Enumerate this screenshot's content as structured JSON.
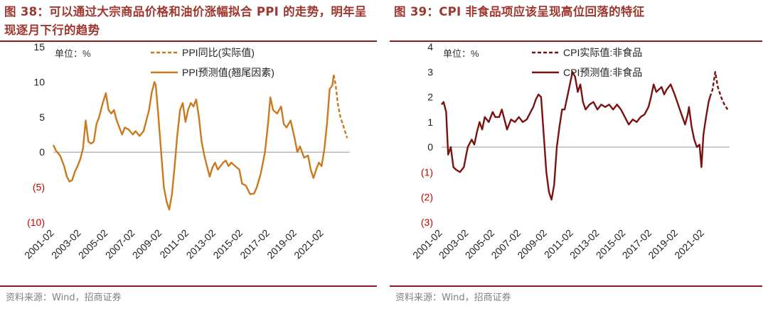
{
  "charts": [
    {
      "title": "图 38：可以通过大宗商品价格和油价涨幅拟合 PPI 的走势，明年呈现逐月下行的趋势",
      "source": "资料来源：Wind，招商证券",
      "unit_label": "单位：%",
      "color": "#c97a1e",
      "negative_tick_color": "#cc0000"
    },
    {
      "title": "图 39：CPI 非食品项应该呈现高位回落的特征",
      "source": "资料来源：Wind，招商证券",
      "unit_label": "单位：%",
      "color": "#7a1212",
      "negative_tick_color": "#cc0000"
    }
  ],
  "chart_data": [
    {
      "type": "line",
      "ylim": [
        -10,
        15
      ],
      "yticks": [
        15,
        10,
        5,
        0,
        -5,
        -10
      ],
      "ytick_labels": [
        "15",
        "10",
        "5",
        "0",
        "(5)",
        "(10)"
      ],
      "xlim": [
        2001.0,
        2023.0
      ],
      "xtick_labels": [
        "2001-02",
        "2003-02",
        "2005-02",
        "2007-02",
        "2009-02",
        "2011-02",
        "2013-02",
        "2015-02",
        "2017-02",
        "2019-02",
        "2021-02"
      ],
      "legend_position": "top",
      "series": [
        {
          "name": "PPI同比(实际值)",
          "style": "dashed",
          "points": [
            [
              2021.8,
              11.0
            ],
            [
              2021.95,
              9.5
            ],
            [
              2022.1,
              7.0
            ],
            [
              2022.3,
              5.0
            ],
            [
              2022.55,
              3.5
            ],
            [
              2022.8,
              2.0
            ]
          ]
        },
        {
          "name": "PPI预测值(翘尾因素)",
          "style": "solid",
          "points": [
            [
              2001.0,
              1.0
            ],
            [
              2001.2,
              0.2
            ],
            [
              2001.5,
              -0.5
            ],
            [
              2001.8,
              -2.0
            ],
            [
              2002.0,
              -3.5
            ],
            [
              2002.2,
              -4.2
            ],
            [
              2002.4,
              -4.0
            ],
            [
              2002.6,
              -2.8
            ],
            [
              2002.8,
              -2.0
            ],
            [
              2003.0,
              -1.0
            ],
            [
              2003.2,
              0.5
            ],
            [
              2003.4,
              4.5
            ],
            [
              2003.6,
              1.5
            ],
            [
              2003.8,
              1.2
            ],
            [
              2004.0,
              1.5
            ],
            [
              2004.2,
              4.0
            ],
            [
              2004.4,
              5.0
            ],
            [
              2004.7,
              7.2
            ],
            [
              2004.9,
              8.4
            ],
            [
              2005.1,
              6.0
            ],
            [
              2005.3,
              5.5
            ],
            [
              2005.5,
              6.0
            ],
            [
              2005.7,
              4.5
            ],
            [
              2005.9,
              3.5
            ],
            [
              2006.1,
              2.5
            ],
            [
              2006.3,
              3.5
            ],
            [
              2006.6,
              3.2
            ],
            [
              2006.9,
              2.5
            ],
            [
              2007.1,
              3.0
            ],
            [
              2007.4,
              2.3
            ],
            [
              2007.7,
              3.0
            ],
            [
              2007.9,
              4.5
            ],
            [
              2008.1,
              6.0
            ],
            [
              2008.3,
              8.5
            ],
            [
              2008.5,
              10.0
            ],
            [
              2008.6,
              9.5
            ],
            [
              2008.8,
              5.0
            ],
            [
              2009.0,
              0.0
            ],
            [
              2009.2,
              -5.0
            ],
            [
              2009.4,
              -7.0
            ],
            [
              2009.6,
              -8.2
            ],
            [
              2009.8,
              -6.0
            ],
            [
              2010.0,
              -2.0
            ],
            [
              2010.2,
              2.5
            ],
            [
              2010.4,
              6.0
            ],
            [
              2010.6,
              7.0
            ],
            [
              2010.8,
              4.3
            ],
            [
              2011.0,
              6.0
            ],
            [
              2011.2,
              7.0
            ],
            [
              2011.4,
              6.5
            ],
            [
              2011.6,
              7.5
            ],
            [
              2011.8,
              5.0
            ],
            [
              2012.0,
              1.5
            ],
            [
              2012.2,
              -0.5
            ],
            [
              2012.4,
              -2.0
            ],
            [
              2012.6,
              -3.5
            ],
            [
              2012.8,
              -2.2
            ],
            [
              2013.0,
              -1.5
            ],
            [
              2013.2,
              -2.5
            ],
            [
              2013.4,
              -2.0
            ],
            [
              2013.6,
              -1.5
            ],
            [
              2013.8,
              -1.2
            ],
            [
              2014.0,
              -2.0
            ],
            [
              2014.2,
              -1.5
            ],
            [
              2014.5,
              -2.0
            ],
            [
              2014.8,
              -2.5
            ],
            [
              2015.0,
              -4.5
            ],
            [
              2015.3,
              -4.8
            ],
            [
              2015.6,
              -6.0
            ],
            [
              2015.9,
              -5.9
            ],
            [
              2016.1,
              -5.0
            ],
            [
              2016.4,
              -3.0
            ],
            [
              2016.7,
              0.0
            ],
            [
              2016.9,
              3.5
            ],
            [
              2017.1,
              7.8
            ],
            [
              2017.3,
              6.0
            ],
            [
              2017.6,
              5.5
            ],
            [
              2017.9,
              6.5
            ],
            [
              2018.1,
              4.0
            ],
            [
              2018.3,
              3.5
            ],
            [
              2018.6,
              4.5
            ],
            [
              2018.9,
              2.0
            ],
            [
              2019.1,
              0.0
            ],
            [
              2019.3,
              0.8
            ],
            [
              2019.6,
              -0.8
            ],
            [
              2019.9,
              -0.5
            ],
            [
              2020.1,
              -2.5
            ],
            [
              2020.3,
              -3.7
            ],
            [
              2020.5,
              -2.5
            ],
            [
              2020.7,
              -1.5
            ],
            [
              2020.9,
              -2.0
            ],
            [
              2021.1,
              0.3
            ],
            [
              2021.3,
              4.0
            ],
            [
              2021.5,
              9.0
            ],
            [
              2021.7,
              9.5
            ],
            [
              2021.8,
              11.0
            ]
          ]
        }
      ]
    },
    {
      "type": "line",
      "ylim": [
        -3,
        4
      ],
      "yticks": [
        4,
        3,
        2,
        1,
        0,
        -1,
        -2,
        -3
      ],
      "ytick_labels": [
        "4",
        "3",
        "2",
        "1",
        "0",
        "(1)",
        "(2)",
        "(3)"
      ],
      "xlim": [
        2001.0,
        2023.0
      ],
      "xtick_labels": [
        "2001-02",
        "2003-02",
        "2005-02",
        "2007-02",
        "2009-02",
        "2011-02",
        "2013-02",
        "2015-02",
        "2017-02",
        "2019-02",
        "2021-02"
      ],
      "legend_position": "top",
      "series": [
        {
          "name": "CPI实际值:非食品",
          "style": "dashed",
          "points": [
            [
              2021.5,
              2.0
            ],
            [
              2021.7,
              2.3
            ],
            [
              2021.9,
              3.0
            ],
            [
              2022.1,
              2.4
            ],
            [
              2022.35,
              2.0
            ],
            [
              2022.6,
              1.7
            ],
            [
              2022.85,
              1.5
            ]
          ]
        },
        {
          "name": "CPI预测值:非食品",
          "style": "solid",
          "points": [
            [
              2001.0,
              1.7
            ],
            [
              2001.15,
              1.8
            ],
            [
              2001.35,
              1.4
            ],
            [
              2001.5,
              -0.3
            ],
            [
              2001.7,
              0.0
            ],
            [
              2001.9,
              -0.8
            ],
            [
              2002.1,
              -0.9
            ],
            [
              2002.4,
              -1.0
            ],
            [
              2002.7,
              -0.8
            ],
            [
              2003.0,
              0.0
            ],
            [
              2003.3,
              0.3
            ],
            [
              2003.5,
              0.1
            ],
            [
              2003.7,
              0.6
            ],
            [
              2003.9,
              1.0
            ],
            [
              2004.1,
              0.7
            ],
            [
              2004.3,
              1.2
            ],
            [
              2004.6,
              1.0
            ],
            [
              2004.9,
              1.4
            ],
            [
              2005.1,
              1.2
            ],
            [
              2005.4,
              1.2
            ],
            [
              2005.6,
              1.5
            ],
            [
              2005.8,
              1.1
            ],
            [
              2006.0,
              0.7
            ],
            [
              2006.3,
              1.1
            ],
            [
              2006.6,
              1.0
            ],
            [
              2006.9,
              1.2
            ],
            [
              2007.2,
              1.0
            ],
            [
              2007.5,
              1.1
            ],
            [
              2007.8,
              1.4
            ],
            [
              2008.0,
              1.6
            ],
            [
              2008.2,
              1.9
            ],
            [
              2008.4,
              2.1
            ],
            [
              2008.6,
              2.0
            ],
            [
              2008.8,
              0.5
            ],
            [
              2009.0,
              -1.0
            ],
            [
              2009.2,
              -1.8
            ],
            [
              2009.4,
              -2.1
            ],
            [
              2009.6,
              -1.5
            ],
            [
              2009.8,
              0.0
            ],
            [
              2010.0,
              0.8
            ],
            [
              2010.2,
              1.5
            ],
            [
              2010.4,
              1.5
            ],
            [
              2010.6,
              2.0
            ],
            [
              2010.8,
              2.5
            ],
            [
              2011.0,
              3.0
            ],
            [
              2011.2,
              2.8
            ],
            [
              2011.4,
              2.2
            ],
            [
              2011.6,
              2.5
            ],
            [
              2011.8,
              1.8
            ],
            [
              2012.0,
              1.5
            ],
            [
              2012.3,
              1.7
            ],
            [
              2012.6,
              1.8
            ],
            [
              2012.9,
              1.5
            ],
            [
              2013.2,
              1.7
            ],
            [
              2013.5,
              1.6
            ],
            [
              2013.8,
              1.7
            ],
            [
              2014.1,
              1.5
            ],
            [
              2014.4,
              1.7
            ],
            [
              2014.7,
              1.5
            ],
            [
              2015.0,
              1.2
            ],
            [
              2015.3,
              0.9
            ],
            [
              2015.6,
              1.1
            ],
            [
              2015.9,
              1.0
            ],
            [
              2016.2,
              1.2
            ],
            [
              2016.5,
              1.3
            ],
            [
              2016.8,
              1.6
            ],
            [
              2017.0,
              2.0
            ],
            [
              2017.2,
              2.5
            ],
            [
              2017.4,
              2.2
            ],
            [
              2017.6,
              2.3
            ],
            [
              2017.8,
              2.4
            ],
            [
              2018.0,
              2.1
            ],
            [
              2018.2,
              2.3
            ],
            [
              2018.5,
              2.5
            ],
            [
              2018.8,
              2.1
            ],
            [
              2019.0,
              1.8
            ],
            [
              2019.2,
              1.5
            ],
            [
              2019.4,
              1.2
            ],
            [
              2019.6,
              0.9
            ],
            [
              2019.8,
              1.3
            ],
            [
              2019.9,
              1.6
            ],
            [
              2020.1,
              0.8
            ],
            [
              2020.3,
              0.3
            ],
            [
              2020.5,
              0.0
            ],
            [
              2020.7,
              0.1
            ],
            [
              2020.85,
              -0.8
            ],
            [
              2021.0,
              0.5
            ],
            [
              2021.2,
              1.2
            ],
            [
              2021.4,
              1.8
            ],
            [
              2021.5,
              2.0
            ]
          ]
        }
      ]
    }
  ]
}
